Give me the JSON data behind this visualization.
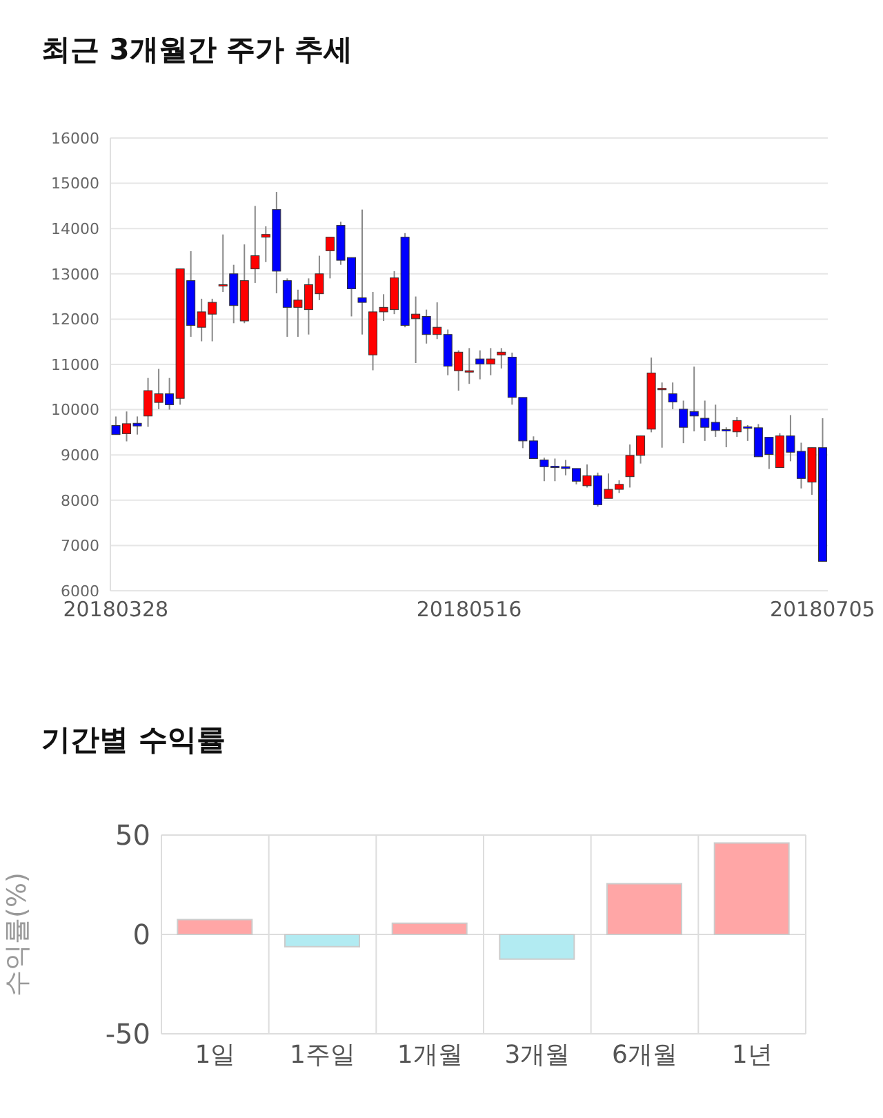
{
  "chart_data": [
    {
      "type": "candlestick",
      "title": "최근 3개월간 주가 추세",
      "categories": [
        "20180328",
        null,
        null,
        null,
        null,
        null,
        null,
        null,
        null,
        null,
        null,
        null,
        null,
        null,
        null,
        null,
        null,
        null,
        null,
        null,
        null,
        null,
        null,
        null,
        null,
        null,
        null,
        null,
        null,
        null,
        null,
        null,
        null,
        "20180516",
        null,
        null,
        null,
        null,
        null,
        null,
        null,
        null,
        null,
        null,
        null,
        null,
        null,
        null,
        null,
        null,
        null,
        null,
        null,
        null,
        null,
        null,
        null,
        null,
        null,
        null,
        null,
        null,
        null,
        null,
        null,
        null,
        "20180705"
      ],
      "ohlc": [
        [
          9650,
          9850,
          9450,
          9450
        ],
        [
          9470,
          9960,
          9300,
          9690
        ],
        [
          9700,
          9850,
          9450,
          9640
        ],
        [
          9860,
          10700,
          9620,
          10420
        ],
        [
          10160,
          10900,
          10010,
          10350
        ],
        [
          10350,
          10700,
          10000,
          10110
        ],
        [
          10250,
          13110,
          10110,
          13110
        ],
        [
          12850,
          13500,
          11610,
          11860
        ],
        [
          11820,
          12450,
          11510,
          12160
        ],
        [
          12110,
          12450,
          11510,
          12370
        ],
        [
          12760,
          13870,
          12600,
          12760
        ],
        [
          13000,
          13200,
          11910,
          12300
        ],
        [
          11960,
          13650,
          11910,
          12850
        ],
        [
          13110,
          14500,
          12800,
          13400
        ],
        [
          13810,
          14050,
          13260,
          13870
        ],
        [
          14420,
          14810,
          12570,
          13060
        ],
        [
          12850,
          12900,
          11610,
          12260
        ],
        [
          12260,
          12650,
          11610,
          12420
        ],
        [
          12210,
          12900,
          11660,
          12760
        ],
        [
          12560,
          13400,
          12420,
          13000
        ],
        [
          13510,
          13810,
          12900,
          13810
        ],
        [
          14070,
          14150,
          13200,
          13300
        ],
        [
          13360,
          13360,
          12060,
          12670
        ],
        [
          12470,
          14420,
          11660,
          12370
        ],
        [
          11210,
          12600,
          10870,
          12160
        ],
        [
          12160,
          12550,
          11960,
          12260
        ],
        [
          12210,
          13060,
          12110,
          12910
        ],
        [
          13810,
          13900,
          11820,
          11860
        ],
        [
          12010,
          12500,
          11030,
          12110
        ],
        [
          12060,
          12210,
          11460,
          11660
        ],
        [
          11660,
          12370,
          11560,
          11820
        ],
        [
          11660,
          11770,
          10760,
          10960
        ],
        [
          10860,
          11310,
          10420,
          11270
        ],
        [
          10860,
          11360,
          10570,
          10860
        ],
        [
          11120,
          11310,
          10670,
          11010
        ],
        [
          11010,
          11360,
          10760,
          11120
        ],
        [
          11210,
          11360,
          10910,
          11270
        ],
        [
          11160,
          11260,
          10110,
          10270
        ],
        [
          10270,
          10270,
          9150,
          9310
        ],
        [
          9310,
          9410,
          8920,
          8920
        ],
        [
          8890,
          8940,
          8420,
          8740
        ],
        [
          8750,
          8920,
          8420,
          8730
        ],
        [
          8740,
          8890,
          8550,
          8700
        ],
        [
          8700,
          8700,
          8350,
          8420
        ],
        [
          8320,
          8790,
          8280,
          8540
        ],
        [
          8540,
          8610,
          7860,
          7900
        ],
        [
          8040,
          8590,
          8040,
          8240
        ],
        [
          8240,
          8440,
          8160,
          8350
        ],
        [
          8520,
          9230,
          8280,
          8990
        ],
        [
          8990,
          9420,
          8810,
          9420
        ],
        [
          9570,
          11150,
          9500,
          10810
        ],
        [
          10450,
          10600,
          9160,
          10470
        ],
        [
          10350,
          10600,
          10010,
          10170
        ],
        [
          10010,
          10200,
          9260,
          9610
        ],
        [
          9960,
          10950,
          9520,
          9860
        ],
        [
          9810,
          10200,
          9310,
          9610
        ],
        [
          9720,
          10110,
          9400,
          9540
        ],
        [
          9560,
          9610,
          9170,
          9550
        ],
        [
          9510,
          9840,
          9400,
          9760
        ],
        [
          9620,
          9660,
          9310,
          9610
        ],
        [
          9600,
          9680,
          8960,
          8960
        ],
        [
          9390,
          9390,
          8690,
          9010
        ],
        [
          8720,
          9480,
          8720,
          9420
        ],
        [
          9420,
          9880,
          8860,
          9060
        ],
        [
          9080,
          9270,
          8260,
          8480
        ],
        [
          8400,
          9160,
          8120,
          9160
        ],
        [
          9160,
          9810,
          6650,
          6650
        ]
      ],
      "colors": [
        "#0000ff",
        "#ff0000",
        "#0000ff",
        "#ff0000",
        "#ff0000",
        "#0000ff",
        "#ff0000",
        "#0000ff",
        "#ff0000",
        "#ff0000",
        "#ff0000",
        "#0000ff",
        "#ff0000",
        "#ff0000",
        "#ff0000",
        "#0000ff",
        "#0000ff",
        "#ff0000",
        "#ff0000",
        "#ff0000",
        "#ff0000",
        "#0000ff",
        "#0000ff",
        "#0000ff",
        "#ff0000",
        "#ff0000",
        "#ff0000",
        "#0000ff",
        "#ff0000",
        "#0000ff",
        "#ff0000",
        "#0000ff",
        "#ff0000",
        "#ff0000",
        "#0000ff",
        "#ff0000",
        "#ff0000",
        "#0000ff",
        "#0000ff",
        "#0000ff",
        "#0000ff",
        "#0000ff",
        "#0000ff",
        "#0000ff",
        "#ff0000",
        "#0000ff",
        "#ff0000",
        "#ff0000",
        "#ff0000",
        "#ff0000",
        "#ff0000",
        "#ff0000",
        "#0000ff",
        "#0000ff",
        "#0000ff",
        "#0000ff",
        "#0000ff",
        "#0000ff",
        "#ff0000",
        "#0000ff",
        "#0000ff",
        "#0000ff",
        "#ff0000",
        "#0000ff",
        "#0000ff",
        "#ff0000",
        "#0000ff"
      ],
      "ylim": [
        6000,
        16000
      ],
      "yticks": [
        6000,
        7000,
        8000,
        9000,
        10000,
        11000,
        12000,
        13000,
        14000,
        15000,
        16000
      ],
      "grid": "y"
    },
    {
      "type": "bar",
      "title": "기간별 수익률",
      "ylabel": "수익률(%)",
      "categories": [
        "1일",
        "1주일",
        "1개월",
        "3개월",
        "6개월",
        "1년"
      ],
      "values": [
        7.5,
        -6.2,
        5.6,
        -12.4,
        25.5,
        46.0
      ],
      "colors": [
        "#ffa6a6",
        "#b2ebf2",
        "#ffa6a6",
        "#b2ebf2",
        "#ffa6a6",
        "#ffa6a6"
      ],
      "ylim": [
        -50,
        50
      ],
      "yticks": [
        -50,
        0,
        50
      ],
      "grid": true
    }
  ]
}
